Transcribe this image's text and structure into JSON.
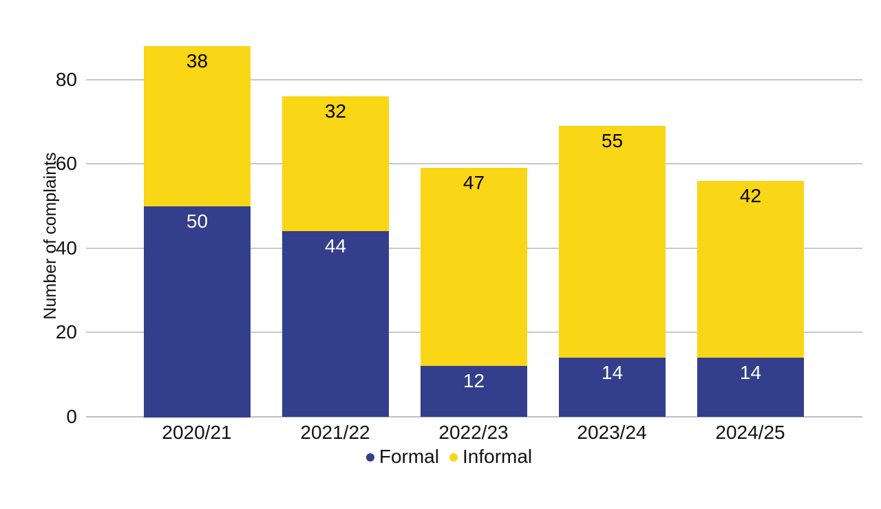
{
  "chart_data": {
    "type": "bar",
    "stacked": true,
    "title": "",
    "categories": [
      "2020/21",
      "2021/22",
      "2022/23",
      "2023/24",
      "2024/25"
    ],
    "series": [
      {
        "name": "Formal",
        "values": [
          50,
          44,
          12,
          14,
          14
        ],
        "color": "#333E8C",
        "label_color": "#FFFFFF"
      },
      {
        "name": "Informal",
        "values": [
          38,
          32,
          47,
          55,
          42
        ],
        "color": "#F9D616",
        "label_color": "#000000"
      }
    ],
    "xlabel": "",
    "ylabel": "Number of complaints",
    "yticks": [
      0,
      20,
      40,
      60,
      80
    ],
    "ylim": [
      0,
      90
    ],
    "grid": true,
    "legend_position": "bottom",
    "colors": {
      "gridline": "#C8C8C8",
      "axis_line": "#BFBFBF",
      "text": "#111111",
      "background": "#FFFFFF"
    }
  }
}
